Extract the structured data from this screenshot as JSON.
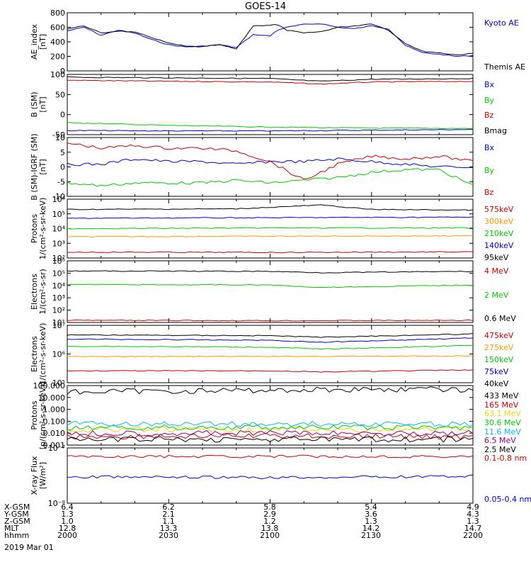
{
  "title": "GOES-14",
  "colors": {
    "black": "#000000",
    "blue": "#0000cc",
    "red": "#cc0000",
    "green": "#00cc00",
    "orange": "#ff9900",
    "cyan": "#00bbee",
    "yellow": "#dddd00",
    "purple": "#880088"
  },
  "panels": [
    {
      "ylabel": [
        "AE_index",
        "[nT]"
      ],
      "yticks": [
        "800",
        "600",
        "400",
        "200",
        "0"
      ],
      "legend": [
        {
          "text": "Kyoto AE",
          "color": "#0000cc"
        },
        {
          "text": "Themis AE",
          "color": "#000000"
        }
      ]
    },
    {
      "ylabel": [
        "B (SM)",
        "[nT]"
      ],
      "yticks": [
        "100",
        "50",
        "0",
        "-50"
      ],
      "legend": [
        {
          "text": "Bx",
          "color": "#0000cc"
        },
        {
          "text": "By",
          "color": "#00cc00"
        },
        {
          "text": "Bz",
          "color": "#cc0000"
        },
        {
          "text": "Bmag",
          "color": "#000000"
        }
      ]
    },
    {
      "ylabel": [
        "B (SM)-IGRF (SM)",
        "[nT]"
      ],
      "yticks": [
        "10",
        "5",
        "0",
        "-5",
        "-10"
      ],
      "legend": [
        {
          "text": "Bx",
          "color": "#0000cc"
        },
        {
          "text": "By",
          "color": "#00cc00"
        },
        {
          "text": "Bz",
          "color": "#cc0000"
        }
      ]
    },
    {
      "ylabel": [
        "Protons",
        "1/(cm²-s-sr-keV)"
      ],
      "yticks": [
        "10⁶",
        "10⁵",
        "10⁴",
        "10³",
        "10²"
      ],
      "legend": [
        {
          "text": "575keV",
          "color": "#cc0000"
        },
        {
          "text": "300keV",
          "color": "#ff9900"
        },
        {
          "text": "210keV",
          "color": "#00cc00"
        },
        {
          "text": "140keV",
          "color": "#0000cc"
        },
        {
          "text": "95keV",
          "color": "#000000"
        }
      ]
    },
    {
      "ylabel": [
        "Electrons",
        "1/(cm²-s-sr)"
      ],
      "yticks": [
        "10⁶",
        "10⁵",
        "10⁴",
        "10³",
        "10²",
        "10¹"
      ],
      "legend": [
        {
          "text": "4 MeV",
          "color": "#cc0000"
        },
        {
          "text": "2 MeV",
          "color": "#00cc00"
        },
        {
          "text": "0.6 MeV",
          "color": "#000000"
        }
      ]
    },
    {
      "ylabel": [
        "Electrons",
        "1/(cm²-s-sr-keV)"
      ],
      "yticks": [
        "10⁷",
        "10⁶",
        "10⁵"
      ],
      "legend": [
        {
          "text": "475keV",
          "color": "#cc0000"
        },
        {
          "text": "275keV",
          "color": "#ff9900"
        },
        {
          "text": "150keV",
          "color": "#00cc00"
        },
        {
          "text": "75keV",
          "color": "#0000cc"
        },
        {
          "text": "40keV",
          "color": "#000000"
        }
      ]
    },
    {
      "ylabel": [
        "Protons",
        "[p/(cm²-s-sr-keV)]"
      ],
      "yticks": [
        "100.000",
        "10.000",
        "1.000",
        "0.100",
        "0.010",
        "0.001"
      ],
      "legend": [
        {
          "text": "433 MeV",
          "color": "#000000"
        },
        {
          "text": "165 MeV",
          "color": "#cc0000"
        },
        {
          "text": "63.1 MeV",
          "color": "#dddd00"
        },
        {
          "text": "30.6 MeV",
          "color": "#00cc00"
        },
        {
          "text": "11.6 MeV",
          "color": "#00bbee"
        },
        {
          "text": "6.5 MeV",
          "color": "#880088"
        },
        {
          "text": "2.5 MeV",
          "color": "#000000"
        }
      ]
    },
    {
      "ylabel": [
        "X-ray Flux",
        "[W/m²]"
      ],
      "yticks": [
        "10⁻⁷",
        "10⁻⁸"
      ],
      "legend": [
        {
          "text": "0.1-0.8 nm",
          "color": "#cc0000"
        },
        {
          "text": "0.05-0.4 nm",
          "color": "#0000cc"
        }
      ]
    }
  ],
  "footer": {
    "rows": [
      {
        "label": "X-GSM",
        "values": [
          "6.4",
          "6.2",
          "5.8",
          "5.4",
          "4.9"
        ]
      },
      {
        "label": "Y-GSM",
        "values": [
          "1.3",
          "2.1",
          "2.9",
          "3.6",
          "4.3"
        ]
      },
      {
        "label": "Z-GSM",
        "values": [
          "1.0",
          "1.1",
          "1.2",
          "1.3",
          "1.3"
        ]
      },
      {
        "label": "MLT",
        "values": [
          "12.8",
          "13.3",
          "13.8",
          "14.2",
          "14.7"
        ]
      },
      {
        "label": "hhmm",
        "values": [
          "2000",
          "2030",
          "2100",
          "2130",
          "2200"
        ]
      }
    ],
    "date": "2019 Mar 01"
  },
  "chart_data": [
    {
      "type": "line",
      "x_unit": "minutes since 2000 UT",
      "ylim": [
        0,
        800
      ],
      "series": [
        {
          "name": "Kyoto AE",
          "color": "#0000cc",
          "x": [
            0,
            5,
            10,
            15,
            20,
            25,
            30,
            35,
            40,
            45,
            50,
            55,
            60,
            62,
            65,
            70,
            75,
            80,
            85,
            90,
            95,
            100,
            105,
            110,
            115,
            120
          ],
          "y": [
            550,
            600,
            490,
            560,
            520,
            430,
            360,
            330,
            340,
            360,
            320,
            500,
            480,
            560,
            600,
            640,
            650,
            600,
            580,
            620,
            580,
            350,
            250,
            230,
            200,
            210
          ]
        },
        {
          "name": "Themis AE",
          "color": "#000000",
          "x": [
            0,
            5,
            10,
            15,
            20,
            25,
            30,
            35,
            40,
            45,
            50,
            55,
            60,
            62,
            65,
            70,
            75,
            80,
            85,
            90,
            95,
            100,
            105,
            110,
            115,
            120
          ],
          "y": [
            580,
            620,
            520,
            550,
            530,
            460,
            380,
            340,
            330,
            360,
            300,
            620,
            630,
            640,
            560,
            520,
            540,
            600,
            620,
            650,
            560,
            380,
            270,
            250,
            220,
            240
          ]
        }
      ]
    },
    {
      "type": "line",
      "ylim": [
        -55,
        120
      ],
      "series": [
        {
          "name": "Bx",
          "color": "#0000cc",
          "x": [
            0,
            30,
            60,
            90,
            120
          ],
          "y": [
            -43,
            -44,
            -44,
            -42,
            -40
          ]
        },
        {
          "name": "By",
          "color": "#00cc00",
          "x": [
            0,
            30,
            60,
            90,
            120
          ],
          "y": [
            -20,
            -28,
            -33,
            -36,
            -37
          ]
        },
        {
          "name": "Bz",
          "color": "#cc0000",
          "x": [
            0,
            30,
            60,
            75,
            90,
            120
          ],
          "y": [
            103,
            100,
            98,
            92,
            98,
            100
          ]
        },
        {
          "name": "Bmag",
          "color": "#000000",
          "x": [
            0,
            30,
            60,
            75,
            90,
            120
          ],
          "y": [
            112,
            110,
            108,
            100,
            106,
            108
          ]
        }
      ]
    },
    {
      "type": "line",
      "ylim": [
        -12,
        10
      ],
      "series": [
        {
          "name": "Bx",
          "color": "#0000cc",
          "x": [
            0,
            10,
            20,
            30,
            40,
            50,
            60,
            70,
            80,
            90,
            100,
            110,
            120
          ],
          "y": [
            0,
            0,
            2,
            1,
            1,
            0,
            1,
            1,
            2,
            1,
            0,
            -1,
            -1
          ]
        },
        {
          "name": "By",
          "color": "#00cc00",
          "x": [
            0,
            10,
            20,
            30,
            40,
            50,
            60,
            70,
            80,
            90,
            100,
            110,
            120
          ],
          "y": [
            -7,
            -8,
            -7,
            -7,
            -7,
            -6,
            -7,
            -6,
            -5,
            -3,
            -2,
            -2,
            -8
          ]
        },
        {
          "name": "Bz",
          "color": "#cc0000",
          "x": [
            0,
            10,
            20,
            30,
            40,
            50,
            60,
            70,
            80,
            90,
            100,
            110,
            120
          ],
          "y": [
            8,
            6,
            7,
            6,
            6,
            5,
            1,
            -6,
            0,
            3,
            2,
            3,
            1
          ]
        }
      ]
    },
    {
      "type": "line",
      "y_scale": "log",
      "ylim": [
        100,
        1000000
      ],
      "series": [
        {
          "name": "575keV",
          "color": "#cc0000",
          "x": [
            0,
            60,
            120
          ],
          "y": [
            250,
            240,
            260
          ]
        },
        {
          "name": "300keV",
          "color": "#ff9900",
          "x": [
            0,
            60,
            120
          ],
          "y": [
            2800,
            3000,
            3200
          ]
        },
        {
          "name": "210keV",
          "color": "#00cc00",
          "x": [
            0,
            60,
            120
          ],
          "y": [
            10000,
            11000,
            11000
          ]
        },
        {
          "name": "140keV",
          "color": "#0000cc",
          "x": [
            0,
            60,
            120
          ],
          "y": [
            50000,
            55000,
            60000
          ]
        },
        {
          "name": "95keV",
          "color": "#000000",
          "x": [
            0,
            50,
            75,
            90,
            120
          ],
          "y": [
            200000,
            220000,
            400000,
            200000,
            180000
          ]
        }
      ]
    },
    {
      "type": "line",
      "y_scale": "log",
      "ylim": [
        10,
        1000000
      ],
      "series": [
        {
          "name": "4 MeV",
          "color": "#cc0000",
          "x": [
            0,
            60,
            120
          ],
          "y": [
            15,
            14,
            15
          ]
        },
        {
          "name": "2 MeV",
          "color": "#00cc00",
          "x": [
            0,
            60,
            75,
            120
          ],
          "y": [
            12000,
            11000,
            7000,
            11000
          ]
        },
        {
          "name": "0.6 MeV",
          "color": "#000000",
          "x": [
            0,
            60,
            75,
            120
          ],
          "y": [
            150000,
            140000,
            110000,
            140000
          ]
        }
      ]
    },
    {
      "type": "line",
      "y_scale": "log",
      "ylim": [
        30000,
        10000000
      ],
      "series": [
        {
          "name": "475keV",
          "color": "#cc0000",
          "x": [
            0,
            60,
            75,
            120
          ],
          "y": [
            100000,
            100000,
            90000,
            110000
          ]
        },
        {
          "name": "275keV",
          "color": "#ff9900",
          "x": [
            0,
            60,
            120
          ],
          "y": [
            420000,
            430000,
            450000
          ]
        },
        {
          "name": "150keV",
          "color": "#00cc00",
          "x": [
            0,
            60,
            75,
            120
          ],
          "y": [
            1200000,
            1100000,
            900000,
            1300000
          ]
        },
        {
          "name": "75keV",
          "color": "#0000cc",
          "x": [
            0,
            60,
            75,
            120
          ],
          "y": [
            2500000,
            2200000,
            1800000,
            2800000
          ]
        },
        {
          "name": "40keV",
          "color": "#000000",
          "x": [
            0,
            60,
            75,
            120
          ],
          "y": [
            3800000,
            3500000,
            3000000,
            4200000
          ]
        }
      ]
    },
    {
      "type": "line",
      "y_scale": "log",
      "ylim": [
        0.001,
        100
      ],
      "series": [
        {
          "name": "433 MeV",
          "color": "#000000",
          "x": [
            0,
            30,
            60,
            90,
            120
          ],
          "y": [
            30,
            35,
            40,
            50,
            45
          ]
        },
        {
          "name": "165 MeV",
          "color": "#cc0000",
          "x": [
            0,
            60,
            120
          ],
          "y": [
            0.005,
            0.006,
            0.005
          ]
        },
        {
          "name": "63.1 MeV",
          "color": "#dddd00",
          "x": [
            0,
            60,
            120
          ],
          "y": [
            0.02,
            0.02,
            0.02
          ]
        },
        {
          "name": "30.6 MeV",
          "color": "#00cc00",
          "x": [
            0,
            60,
            120
          ],
          "y": [
            0.03,
            0.03,
            0.03
          ]
        },
        {
          "name": "11.6 MeV",
          "color": "#00bbee",
          "x": [
            0,
            60,
            120
          ],
          "y": [
            0.06,
            0.06,
            0.06
          ]
        },
        {
          "name": "6.5 MeV",
          "color": "#880088",
          "x": [
            0,
            60,
            120
          ],
          "y": [
            0.01,
            0.01,
            0.01
          ]
        },
        {
          "name": "2.5 MeV",
          "color": "#000000",
          "x": [
            0,
            60,
            120
          ],
          "y": [
            0.003,
            0.003,
            0.003
          ]
        }
      ]
    },
    {
      "type": "line",
      "y_scale": "log",
      "ylim": [
        1e-08,
        1e-07
      ],
      "series": [
        {
          "name": "0.1-0.8 nm",
          "color": "#cc0000",
          "x": [
            0,
            60,
            120
          ],
          "y": [
            7e-08,
            7e-08,
            7e-08
          ]
        },
        {
          "name": "0.05-0.4 nm",
          "color": "#0000cc",
          "x": [
            0,
            60,
            120
          ],
          "y": [
            3e-08,
            2.9e-08,
            3.1e-08
          ]
        }
      ]
    }
  ]
}
